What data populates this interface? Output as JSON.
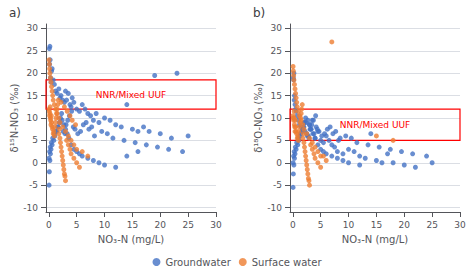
{
  "chart_data": [
    {
      "type": "scatter",
      "title": "a)",
      "xlabel": "NO₃-N (mg/L)",
      "ylabel": "δ¹⁵N-NO₃ (‰)",
      "xlim": [
        -0.5,
        30
      ],
      "xticks": [
        0,
        5,
        10,
        15,
        20,
        25,
        30
      ],
      "ylim": [
        -11,
        31
      ],
      "yticks": [
        -10,
        -5,
        0,
        5,
        10,
        15,
        20,
        25,
        30
      ],
      "grid": "y",
      "legend": "bottom",
      "series": [
        {
          "name": "Groundwater",
          "color": "#4472C4",
          "x": [
            0.1,
            0.2,
            0.15,
            0.3,
            0.25,
            0.4,
            0.5,
            0.6,
            0.8,
            1.0,
            1.2,
            1.5,
            1.8,
            2.0,
            2.2,
            2.5,
            2.8,
            3.0,
            3.2,
            3.5,
            3.8,
            4.0,
            4.2,
            4.5,
            5.0,
            5.5,
            6.0,
            6.5,
            7.0,
            7.5,
            8.0,
            8.5,
            9.0,
            10.0,
            11.0,
            12.0,
            13.0,
            14.0,
            15.0,
            16.0,
            17.0,
            18.0,
            20.0,
            22.0,
            25.0,
            0.05,
            0.1,
            0.2,
            0.3,
            0.4,
            0.6,
            0.9,
            1.1,
            1.3,
            1.6,
            1.9,
            2.1,
            2.3,
            2.6,
            2.9,
            3.1,
            3.4,
            3.7,
            4.1,
            4.4,
            4.7,
            5.2,
            5.7,
            6.2,
            6.7,
            7.2,
            7.7,
            8.2,
            9.5,
            10.5,
            11.5,
            13.5,
            15.5,
            17.5,
            19.5,
            21.5,
            24.0,
            0.05,
            0.15,
            0.25,
            0.45,
            0.7,
            1.0,
            1.4,
            1.7,
            2.0,
            2.4,
            2.7,
            3.0,
            3.3,
            3.6,
            4.0,
            4.5,
            5.0,
            5.5,
            6.0,
            7.0,
            8.0,
            9.0,
            10.0,
            12.0,
            14.0,
            16.0,
            19.0,
            23.0
          ],
          "values": [
            25.5,
            26.0,
            22.0,
            19.0,
            23.0,
            18.0,
            20.5,
            21.0,
            18.5,
            17.5,
            16.0,
            15.5,
            16.5,
            14.5,
            15.0,
            14.0,
            13.5,
            16.0,
            14.0,
            15.5,
            13.0,
            12.5,
            14.5,
            13.5,
            12.0,
            11.5,
            13.0,
            12.0,
            11.0,
            10.5,
            9.5,
            11.0,
            9.0,
            10.0,
            9.5,
            8.5,
            8.0,
            13.0,
            7.5,
            7.0,
            8.0,
            7.0,
            6.5,
            5.5,
            6.0,
            -5.0,
            -2.0,
            0.5,
            2.0,
            3.0,
            4.0,
            5.0,
            6.0,
            7.0,
            8.0,
            9.0,
            10.0,
            11.0,
            7.0,
            6.5,
            8.5,
            9.5,
            10.5,
            11.5,
            8.0,
            7.5,
            6.5,
            7.0,
            8.5,
            9.0,
            7.5,
            8.0,
            6.0,
            7.0,
            6.5,
            5.5,
            5.0,
            4.5,
            4.0,
            3.5,
            3.0,
            2.5,
            1.0,
            2.5,
            3.5,
            4.5,
            5.5,
            6.5,
            7.0,
            8.0,
            9.0,
            9.5,
            8.5,
            7.5,
            6.5,
            5.5,
            4.0,
            3.0,
            2.5,
            2.0,
            1.5,
            1.0,
            0.5,
            0.0,
            -0.5,
            -1.0,
            1.5,
            2.5,
            19.5,
            20.0
          ]
        },
        {
          "name": "Surface water",
          "color": "#ED7D31",
          "x": [
            0.05,
            0.1,
            0.15,
            0.2,
            0.25,
            0.3,
            0.35,
            0.4,
            0.45,
            0.5,
            0.6,
            0.7,
            0.8,
            0.9,
            1.0,
            1.1,
            1.2,
            1.3,
            1.4,
            1.5,
            1.6,
            1.7,
            1.8,
            1.9,
            2.0,
            2.1,
            2.2,
            2.3,
            2.4,
            2.5,
            2.6,
            2.7,
            2.8,
            2.9,
            3.0,
            3.2,
            3.5,
            3.8,
            4.0,
            4.5,
            5.0,
            5.5,
            6.0,
            7.0,
            0.05,
            0.1,
            0.15,
            0.2,
            0.3,
            0.4,
            0.5,
            0.6,
            0.7,
            0.8,
            1.0,
            1.2,
            1.5,
            1.8,
            2.0,
            2.5,
            3.0,
            3.5,
            4.0,
            4.5,
            5.0,
            2.2,
            2.8,
            3.3,
            3.8,
            4.2,
            4.8
          ],
          "values": [
            12.0,
            11.5,
            10.5,
            11.0,
            12.5,
            10.0,
            9.5,
            8.5,
            10.5,
            9.0,
            8.0,
            7.5,
            6.5,
            7.0,
            6.0,
            8.0,
            9.0,
            10.0,
            11.0,
            12.0,
            13.0,
            14.0,
            6.5,
            7.5,
            5.5,
            4.5,
            3.5,
            2.5,
            1.5,
            0.5,
            -0.5,
            -1.5,
            -2.5,
            -3.0,
            -4.0,
            5.0,
            4.0,
            3.0,
            2.0,
            1.0,
            0.0,
            -1.0,
            2.5,
            1.5,
            23.0,
            22.0,
            21.0,
            20.0,
            19.0,
            18.0,
            17.0,
            16.0,
            15.0,
            14.0,
            13.0,
            12.0,
            11.0,
            10.0,
            9.0,
            8.0,
            7.0,
            6.0,
            5.0,
            4.0,
            3.0,
            13.5,
            12.5,
            11.5,
            10.5,
            9.5,
            8.5
          ]
        }
      ],
      "annotations": [
        {
          "text": "NNR/Mixed UUF",
          "color": "red",
          "x0": -0.5,
          "y0": 12.0,
          "width": 30.5,
          "height": 6.5
        }
      ]
    },
    {
      "type": "scatter",
      "title": "b)",
      "xlabel": "NO₃-N (mg/L)",
      "ylabel": "δ¹⁸O-NO₃ (‰)",
      "xlim": [
        -0.5,
        30
      ],
      "xticks": [
        0,
        5,
        10,
        15,
        20,
        25,
        30
      ],
      "ylim": [
        -11,
        31
      ],
      "yticks": [
        -10,
        -5,
        0,
        5,
        10,
        15,
        20,
        25,
        30
      ],
      "grid": "y",
      "legend": "bottom",
      "series": [
        {
          "name": "Groundwater",
          "color": "#4472C4",
          "x": [
            0.1,
            0.2,
            0.15,
            0.3,
            0.25,
            0.4,
            0.5,
            0.6,
            0.8,
            1.0,
            1.2,
            1.5,
            1.8,
            2.0,
            2.2,
            2.5,
            2.8,
            3.0,
            3.2,
            3.5,
            3.8,
            4.0,
            4.2,
            4.5,
            5.0,
            5.5,
            6.0,
            6.5,
            7.0,
            7.5,
            8.0,
            8.5,
            9.0,
            10.0,
            11.0,
            12.0,
            13.0,
            14.0,
            15.0,
            16.0,
            17.0,
            18.0,
            20.0,
            22.0,
            25.0,
            0.05,
            0.1,
            0.2,
            0.3,
            0.4,
            0.6,
            0.9,
            1.1,
            1.3,
            1.6,
            1.9,
            2.1,
            2.3,
            2.6,
            2.9,
            3.1,
            3.4,
            3.7,
            4.1,
            4.4,
            4.7,
            5.2,
            5.7,
            6.2,
            6.7,
            7.2,
            7.7,
            8.2,
            9.5,
            10.5,
            11.5,
            13.5,
            15.5,
            17.5,
            19.5,
            21.5,
            24.0,
            0.05,
            0.15,
            0.25,
            0.45,
            0.7,
            1.0,
            1.4,
            1.7,
            2.0,
            2.4,
            2.7,
            3.0,
            3.3,
            3.6,
            4.0,
            4.5,
            5.0,
            5.5,
            6.0,
            7.0,
            8.0,
            9.0,
            10.0,
            12.0
          ],
          "values": [
            19.0,
            20.0,
            18.5,
            15.0,
            14.0,
            13.0,
            12.0,
            11.5,
            10.5,
            9.5,
            8.5,
            8.0,
            7.5,
            9.0,
            7.0,
            6.5,
            6.0,
            8.5,
            7.5,
            9.5,
            6.5,
            5.5,
            8.0,
            7.0,
            5.0,
            4.5,
            6.0,
            5.0,
            4.0,
            3.5,
            2.5,
            5.5,
            2.0,
            3.0,
            2.5,
            1.5,
            1.0,
            6.5,
            0.5,
            0.0,
            2.0,
            0.0,
            -0.5,
            -1.0,
            0.0,
            -5.5,
            -2.5,
            -0.5,
            1.0,
            2.0,
            3.0,
            4.0,
            5.0,
            6.0,
            7.0,
            8.0,
            9.0,
            10.0,
            6.0,
            5.5,
            7.5,
            8.5,
            9.5,
            10.5,
            7.5,
            7.0,
            6.0,
            6.5,
            7.5,
            8.0,
            6.5,
            7.0,
            5.0,
            6.0,
            5.5,
            4.5,
            4.0,
            3.5,
            3.0,
            2.5,
            2.0,
            1.5,
            0.0,
            1.5,
            2.5,
            3.5,
            4.5,
            5.5,
            6.5,
            7.0,
            8.0,
            9.0,
            9.5,
            8.5,
            7.5,
            6.5,
            5.5,
            4.0,
            3.0,
            2.5,
            2.0,
            1.5,
            1.0,
            0.5,
            0.0,
            -0.5
          ]
        },
        {
          "name": "Surface water",
          "color": "#ED7D31",
          "x": [
            0.05,
            0.1,
            0.15,
            0.2,
            0.25,
            0.3,
            0.35,
            0.4,
            0.45,
            0.5,
            0.6,
            0.7,
            0.8,
            0.9,
            1.0,
            1.1,
            1.2,
            1.3,
            1.4,
            1.5,
            1.6,
            1.7,
            1.8,
            1.9,
            2.0,
            2.1,
            2.2,
            2.3,
            2.4,
            2.5,
            2.6,
            2.7,
            2.8,
            2.9,
            3.0,
            3.2,
            3.5,
            3.8,
            4.0,
            4.5,
            5.0,
            5.5,
            6.0,
            7.0,
            0.05,
            0.1,
            0.15,
            0.2,
            0.3,
            0.4,
            0.5,
            0.6,
            0.7,
            0.8,
            1.0,
            1.2,
            1.5,
            1.8,
            2.0,
            2.5,
            3.0,
            3.5,
            4.0,
            4.5,
            5.0,
            15.0,
            18.0
          ],
          "values": [
            10.5,
            10.0,
            9.5,
            10.0,
            11.5,
            8.5,
            8.0,
            7.0,
            9.5,
            8.0,
            7.0,
            6.5,
            5.5,
            6.0,
            5.0,
            7.0,
            8.0,
            9.0,
            10.0,
            11.0,
            12.0,
            13.0,
            5.5,
            6.5,
            4.5,
            3.5,
            2.5,
            1.5,
            0.5,
            -0.5,
            -1.5,
            -2.5,
            -3.5,
            -4.0,
            -5.0,
            4.0,
            3.0,
            2.0,
            1.0,
            0.0,
            -1.0,
            1.5,
            0.5,
            27.0,
            21.5,
            20.5,
            19.5,
            18.5,
            17.5,
            16.5,
            15.5,
            14.5,
            13.5,
            12.5,
            11.5,
            10.5,
            9.5,
            8.5,
            7.5,
            6.5,
            5.5,
            4.5,
            3.5,
            2.5,
            1.5,
            6.0,
            5.0
          ]
        }
      ],
      "annotations": [
        {
          "text": "NNR/Mixed UUF",
          "color": "red",
          "x0": -0.5,
          "y0": 5.0,
          "width": 30.5,
          "height": 7.0
        }
      ]
    }
  ]
}
